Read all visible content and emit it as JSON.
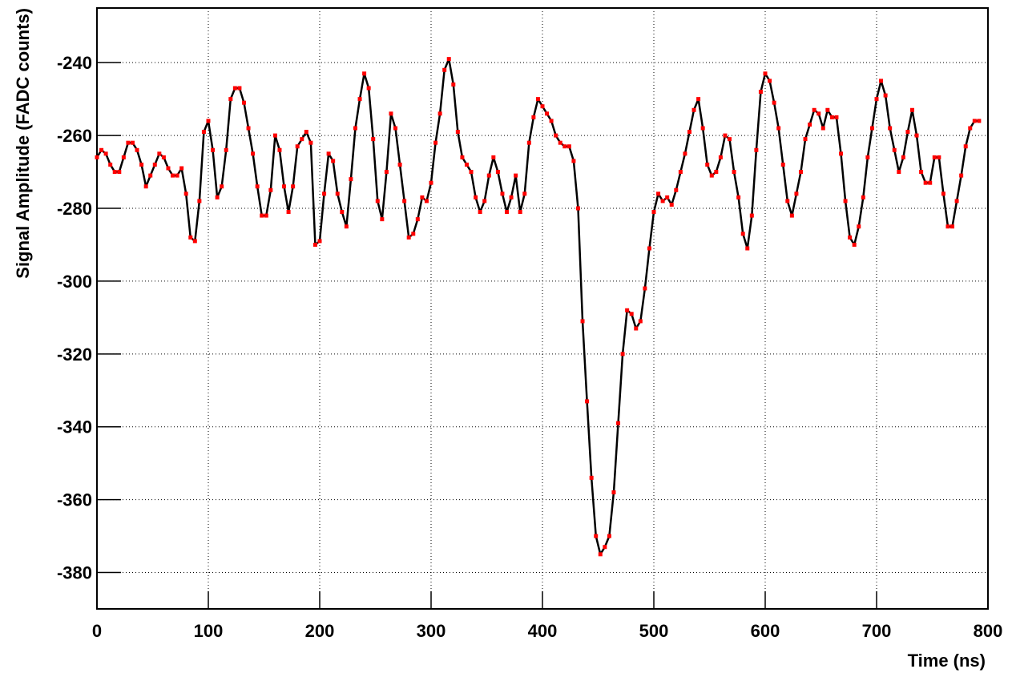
{
  "chart_data": {
    "type": "line",
    "x_label": "Time (ns)",
    "y_label": "Signal Amplitude (FADC counts)",
    "xlim": [
      0,
      800
    ],
    "xticks": [
      0,
      100,
      200,
      300,
      400,
      500,
      600,
      700,
      800
    ],
    "ylim": [
      -390,
      -225
    ],
    "yticks": [
      -380,
      -360,
      -340,
      -320,
      -300,
      -280,
      -260,
      -240
    ],
    "grid": true,
    "x": [
      0,
      4,
      8,
      12,
      16,
      20,
      24,
      28,
      32,
      36,
      40,
      44,
      48,
      52,
      56,
      60,
      64,
      68,
      72,
      76,
      80,
      84,
      88,
      92,
      96,
      100,
      104,
      108,
      112,
      116,
      120,
      124,
      128,
      132,
      136,
      140,
      144,
      148,
      152,
      156,
      160,
      164,
      168,
      172,
      176,
      180,
      184,
      188,
      192,
      196,
      200,
      204,
      208,
      212,
      216,
      220,
      224,
      228,
      232,
      236,
      240,
      244,
      248,
      252,
      256,
      260,
      264,
      268,
      272,
      276,
      280,
      284,
      288,
      292,
      296,
      300,
      304,
      308,
      312,
      316,
      320,
      324,
      328,
      332,
      336,
      340,
      344,
      348,
      352,
      356,
      360,
      364,
      368,
      372,
      376,
      380,
      384,
      388,
      392,
      396,
      400,
      404,
      408,
      412,
      416,
      420,
      424,
      428,
      432,
      436,
      440,
      444,
      448,
      452,
      456,
      460,
      464,
      468,
      472,
      476,
      480,
      484,
      488,
      492,
      496,
      500,
      504,
      508,
      512,
      516,
      520,
      524,
      528,
      532,
      536,
      540,
      544,
      548,
      552,
      556,
      560,
      564,
      568,
      572,
      576,
      580,
      584,
      588,
      592,
      596,
      600,
      604,
      608,
      612,
      616,
      620,
      624,
      628,
      632,
      636,
      640,
      644,
      648,
      652,
      656,
      660,
      664,
      668,
      672,
      676,
      680,
      684,
      688,
      692,
      696,
      700,
      704,
      708,
      712,
      716,
      720,
      724,
      728,
      732,
      736,
      740,
      744,
      748,
      752,
      756,
      760,
      764,
      768,
      772,
      776,
      780,
      784,
      788,
      792
    ],
    "series": [
      {
        "color": "#000000",
        "marker_color": "#ff0000",
        "values": [
          -266,
          -264,
          -265,
          -268,
          -270,
          -270,
          -266,
          -262,
          -262,
          -264,
          -268,
          -274,
          -271,
          -268,
          -265,
          -266,
          -269,
          -271,
          -271,
          -269,
          -276,
          -288,
          -289,
          -278,
          -259,
          -256,
          -264,
          -277,
          -274,
          -264,
          -250,
          -247,
          -247,
          -251,
          -258,
          -265,
          -274,
          -282,
          -282,
          -275,
          -260,
          -264,
          -274,
          -281,
          -274,
          -263,
          -261,
          -259,
          -262,
          -290,
          -289,
          -276,
          -265,
          -267,
          -276,
          -281,
          -285,
          -272,
          -258,
          -250,
          -243,
          -247,
          -261,
          -278,
          -283,
          -270,
          -254,
          -258,
          -268,
          -278,
          -288,
          -287,
          -283,
          -277,
          -278,
          -273,
          -262,
          -254,
          -242,
          -239,
          -246,
          -259,
          -266,
          -268,
          -270,
          -277,
          -281,
          -278,
          -271,
          -266,
          -270,
          -276,
          -281,
          -277,
          -271,
          -281,
          -276,
          -262,
          -255,
          -250,
          -252,
          -254,
          -256,
          -260,
          -262,
          -263,
          -263,
          -267,
          -280,
          -311,
          -333,
          -354,
          -370,
          -375,
          -373,
          -370,
          -358,
          -339,
          -320,
          -308,
          -309,
          -313,
          -311,
          -302,
          -291,
          -281,
          -276,
          -278,
          -277,
          -279,
          -275,
          -270,
          -265,
          -259,
          -253,
          -250,
          -258,
          -268,
          -271,
          -270,
          -266,
          -260,
          -261,
          -270,
          -277,
          -287,
          -291,
          -282,
          -264,
          -248,
          -243,
          -245,
          -251,
          -258,
          -268,
          -278,
          -282,
          -276,
          -270,
          -261,
          -257,
          -253,
          -254,
          -258,
          -253,
          -255,
          -255,
          -265,
          -278,
          -288,
          -290,
          -285,
          -277,
          -266,
          -258,
          -250,
          -245,
          -249,
          -258,
          -264,
          -270,
          -266,
          -259,
          -253,
          -260,
          -270,
          -273,
          -273,
          -266,
          -266,
          -276,
          -285,
          -285,
          -278,
          -271,
          -263,
          -258,
          -256,
          -256
        ]
      }
    ]
  }
}
